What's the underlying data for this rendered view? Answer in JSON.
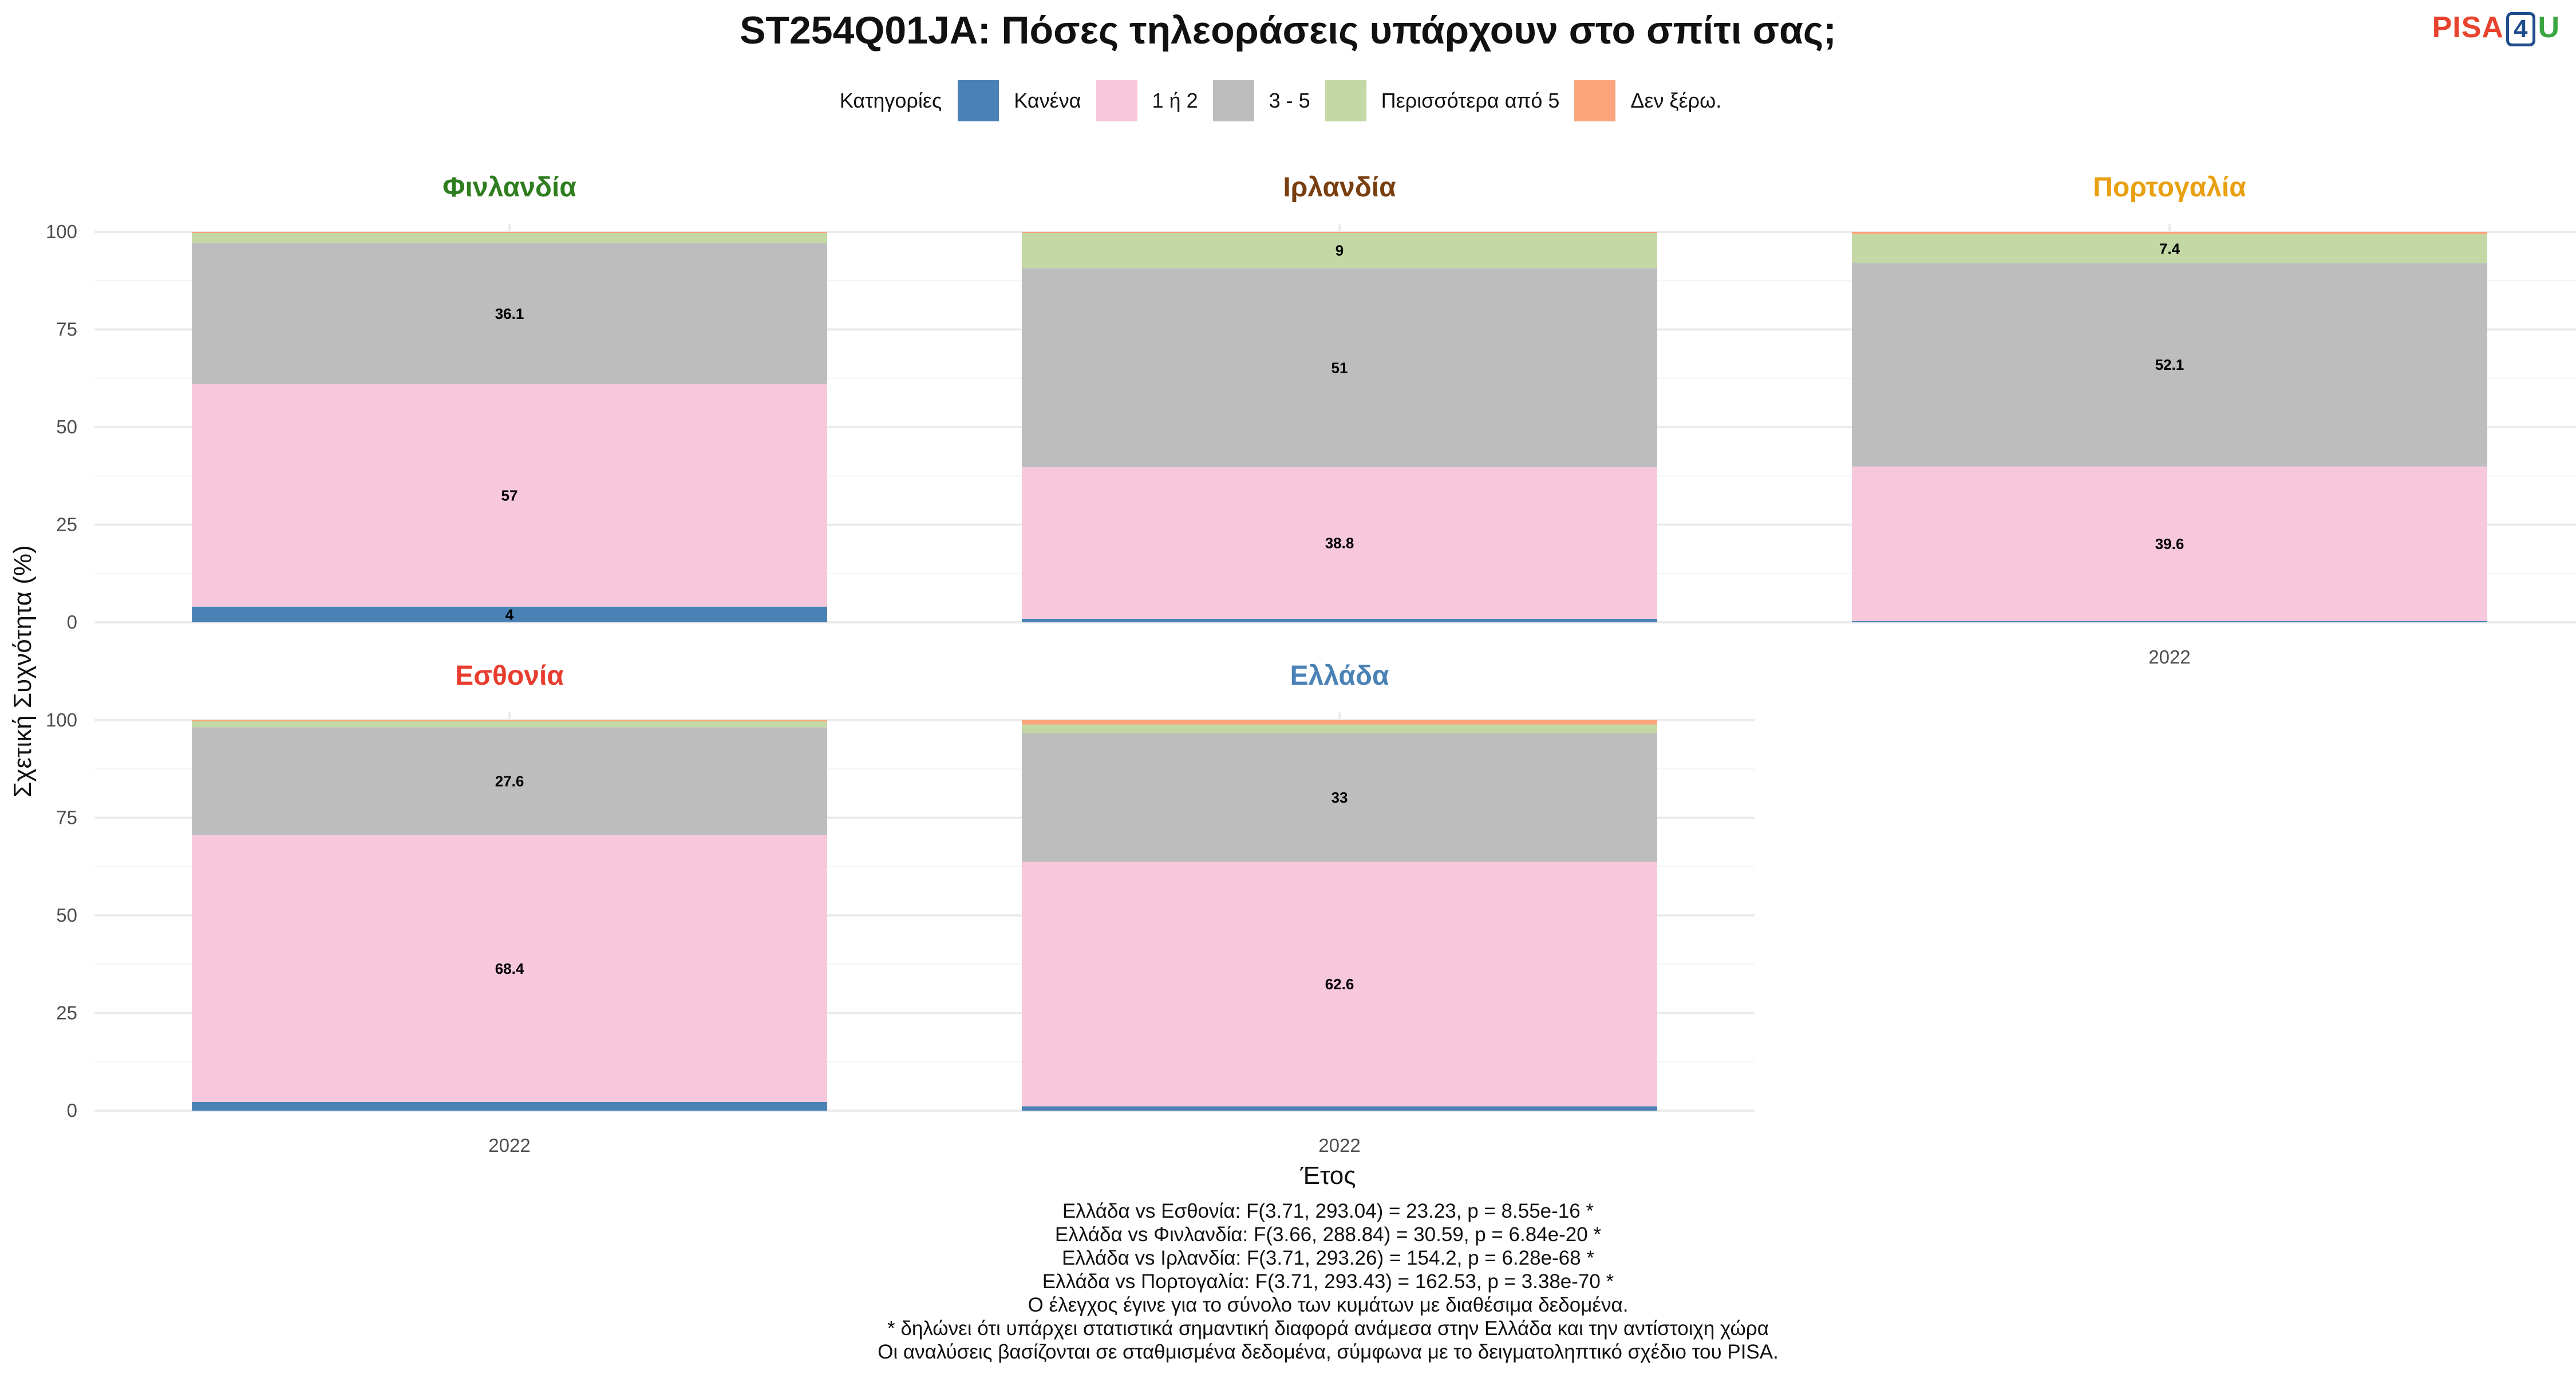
{
  "header": {
    "title": "ST254Q01JA: Πόσες τηλεοράσεις υπάρχουν στο σπίτι σας;",
    "logo": {
      "pisa": "PISA",
      "four": "4",
      "u": "U"
    }
  },
  "legend": {
    "title": "Κατηγορίες",
    "items": [
      {
        "label": "Κανένα",
        "color": "#4a82b6"
      },
      {
        "label": "1 ή 2",
        "color": "#f7c8dc"
      },
      {
        "label": "3 - 5",
        "color": "#bdbdbd"
      },
      {
        "label": "Περισσότερα από 5",
        "color": "#c3d8a5"
      },
      {
        "label": "Δεν ξέρω.",
        "color": "#fca57c"
      }
    ]
  },
  "notes": [
    "Ελλάδα vs Εσθονία: F(3.71, 293.04) = 23.23, p = 8.55e-16 *",
    "Ελλάδα vs Φινλανδία: F(3.66, 288.84) = 30.59, p = 6.84e-20 *",
    "Ελλάδα vs Ιρλανδία: F(3.71, 293.26) = 154.2, p = 6.28e-68 *",
    "Ελλάδα vs Πορτογαλία: F(3.71, 293.43) = 162.53, p = 3.38e-70 *",
    "Ο έλεγχος έγινε για το σύνολο των κυμάτων με διαθέσιμα δεδομένα.",
    "* δηλώνει ότι υπάρχει στατιστικά σημαντική διαφορά ανάμεσα στην Ελλάδα και την αντίστοιχη χώρα",
    "Οι αναλύσεις βασίζονται σε σταθμισμένα δεδομένα, σύμφωνα με το δειγματοληπτικό σχέδιο του PISA."
  ],
  "chart_data": {
    "type": "bar",
    "stacked": true,
    "xlabel": "Έτος",
    "ylabel": "Σχετική Συχνότητα (%)",
    "ylim": [
      0,
      100
    ],
    "yticks": [
      0,
      25,
      50,
      75,
      100
    ],
    "categories": [
      "Κανένα",
      "1 ή 2",
      "3 - 5",
      "Περισσότερα από 5",
      "Δεν ξέρω."
    ],
    "colors": [
      "#4a82b6",
      "#f7c8dc",
      "#bdbdbd",
      "#c3d8a5",
      "#fca57c"
    ],
    "grid": true,
    "legend_position": "top",
    "facets": [
      {
        "name": "Φινλανδία",
        "color": "#2e7d1f",
        "year": "2022",
        "values": [
          4,
          57,
          36.1,
          2.6,
          0.3
        ],
        "labels": [
          "4",
          "57",
          "36.1",
          "",
          ""
        ]
      },
      {
        "name": "Ιρλανδία",
        "color": "#7a3f10",
        "year": "2022",
        "values": [
          0.9,
          38.8,
          51,
          9,
          0.3
        ],
        "labels": [
          "",
          "38.8",
          "51",
          "9",
          ""
        ]
      },
      {
        "name": "Πορτογαλία",
        "color": "#e8a010",
        "year": "2022",
        "values": [
          0.3,
          39.6,
          52.1,
          7.4,
          0.6
        ],
        "labels": [
          "",
          "39.6",
          "52.1",
          "7.4",
          ""
        ]
      },
      {
        "name": "Εσθονία",
        "color": "#e83c2e",
        "year": "2022",
        "values": [
          2.2,
          68.4,
          27.6,
          1.5,
          0.3
        ],
        "labels": [
          "",
          "68.4",
          "27.6",
          "",
          ""
        ]
      },
      {
        "name": "Ελλάδα",
        "color": "#4a82b6",
        "year": "2022",
        "values": [
          1.1,
          62.6,
          33,
          2.2,
          1.1
        ],
        "labels": [
          "",
          "62.6",
          "33",
          "",
          ""
        ]
      }
    ]
  }
}
